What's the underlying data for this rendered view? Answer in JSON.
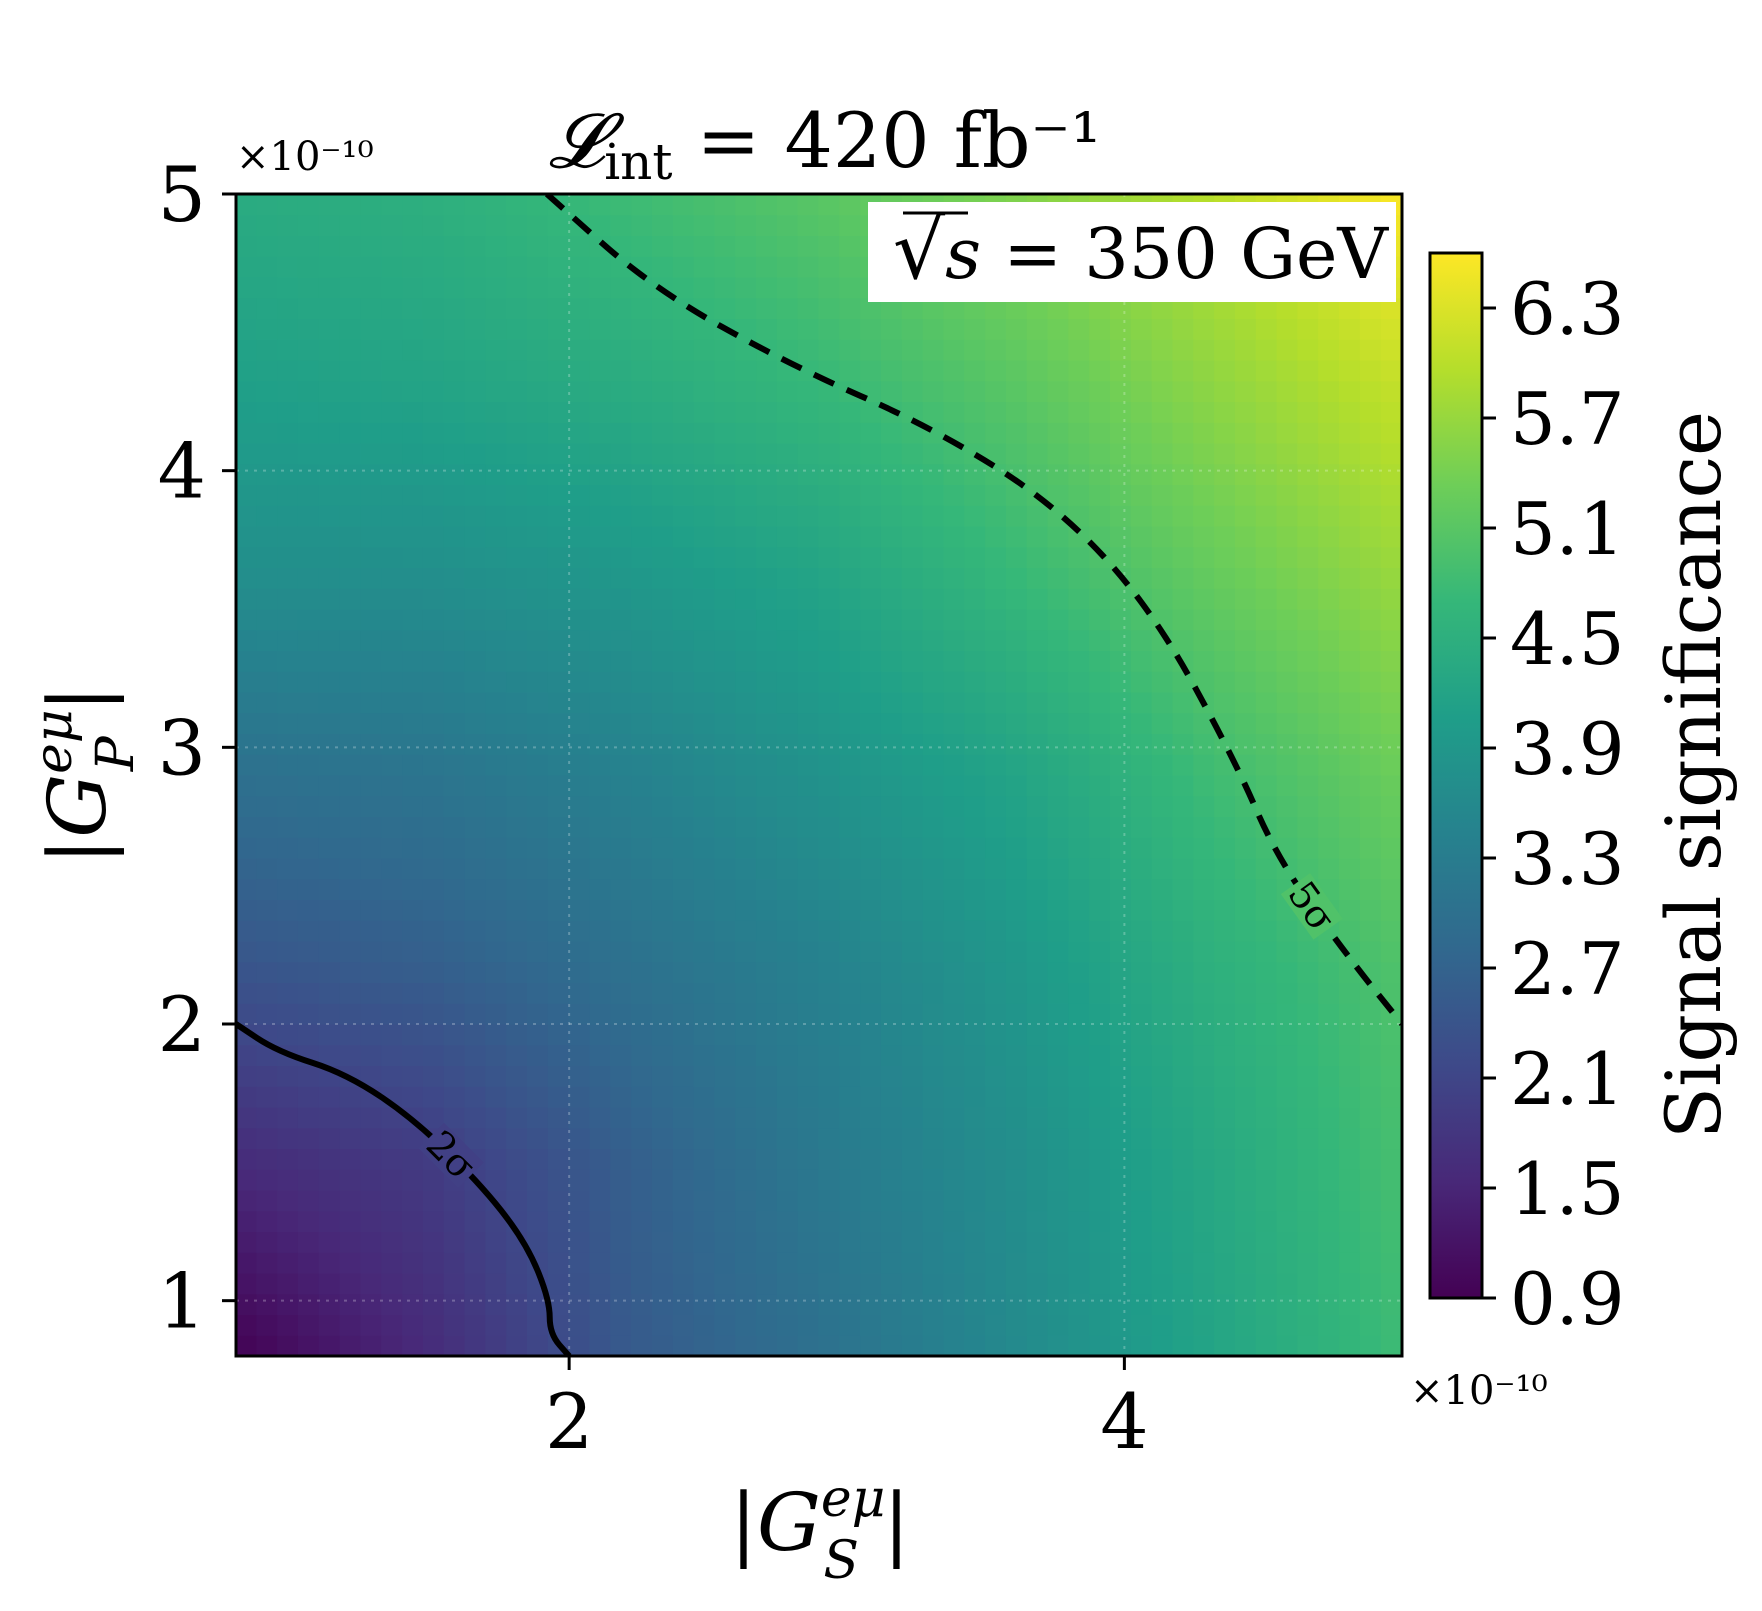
{
  "chart_data": {
    "type": "heatmap",
    "title_prefix": "𝓛",
    "title_subscript": "int",
    "title_rest": " = 420 fb⁻¹",
    "annotation": "√s = 350 GeV",
    "annotation_parts": {
      "sqrt": "√",
      "var": "s",
      "rest": " = 350 GeV"
    },
    "xlabel_parts": {
      "pre": "|",
      "var": "G",
      "sup": "eμ",
      "sub": "S",
      "post": "|"
    },
    "ylabel_parts": {
      "pre": "|",
      "var": "G",
      "sup": "eμ",
      "sub": "P",
      "post": "|"
    },
    "x_multiplier": "×10⁻¹⁰",
    "y_multiplier": "×10⁻¹⁰",
    "xlim": [
      0.8,
      5.0
    ],
    "ylim": [
      0.8,
      5.0
    ],
    "x_unit_scale": "1e-10",
    "y_unit_scale": "1e-10",
    "x_ticks": [
      2,
      4
    ],
    "y_ticks": [
      1,
      2,
      3,
      4,
      5
    ],
    "colorbar_label": "Signal significance",
    "colorbar_ticks": [
      "0.9",
      "1.5",
      "2.1",
      "2.7",
      "3.3",
      "3.9",
      "4.5",
      "5.1",
      "5.7",
      "6.3"
    ],
    "colorbar_range": [
      0.9,
      6.6
    ],
    "colormap": "viridis",
    "colormap_stops": [
      "#440154",
      "#482878",
      "#3e4989",
      "#31688e",
      "#26828e",
      "#1f9e89",
      "#35b779",
      "#6ece58",
      "#b5de2b",
      "#fde725"
    ],
    "grid": true,
    "z_grid_x": [
      0.8,
      1.5,
      2.2,
      2.9,
      3.6,
      4.3,
      5.0
    ],
    "z_grid_y": [
      0.8,
      1.5,
      2.2,
      2.9,
      3.6,
      4.3,
      5.0
    ],
    "z_values": [
      [
        0.9,
        1.6,
        2.5,
        3.0,
        3.6,
        4.2,
        4.8
      ],
      [
        1.6,
        1.9,
        2.6,
        3.2,
        3.7,
        4.3,
        4.9
      ],
      [
        2.4,
        2.6,
        3.0,
        3.4,
        3.9,
        4.5,
        5.0
      ],
      [
        3.0,
        3.1,
        3.4,
        3.8,
        4.2,
        4.8,
        5.3
      ],
      [
        3.7,
        3.7,
        3.9,
        4.2,
        4.7,
        5.2,
        5.7
      ],
      [
        4.1,
        4.2,
        4.4,
        4.7,
        5.1,
        5.6,
        6.1
      ],
      [
        4.4,
        4.5,
        4.8,
        5.1,
        5.5,
        6.0,
        6.6
      ]
    ],
    "contours": [
      {
        "label": "2σ",
        "level": 2,
        "style": "solid",
        "x": [
          0.8,
          0.95,
          1.2,
          1.45,
          1.7,
          1.85,
          1.93,
          1.93,
          2.0
        ],
        "y": [
          2.0,
          1.9,
          1.82,
          1.65,
          1.4,
          1.2,
          1.0,
          0.88,
          0.8
        ]
      },
      {
        "label": "5σ",
        "level": 5,
        "style": "dashed",
        "x": [
          1.92,
          2.3,
          2.8,
          3.3,
          3.75,
          4.1,
          4.4,
          4.55,
          4.8,
          5.0
        ],
        "y": [
          5.0,
          4.66,
          4.38,
          4.16,
          3.88,
          3.5,
          2.95,
          2.6,
          2.25,
          2.0
        ]
      }
    ]
  }
}
